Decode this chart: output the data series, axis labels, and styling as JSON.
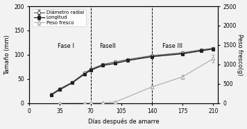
{
  "x_days": [
    25,
    35,
    49,
    63,
    70,
    84,
    98,
    112,
    140,
    175,
    196,
    210
  ],
  "diametro_radial": [
    18,
    30,
    43,
    62,
    70,
    80,
    85,
    90,
    98,
    104,
    110,
    113
  ],
  "longitud": [
    17,
    28,
    42,
    60,
    68,
    78,
    82,
    88,
    96,
    102,
    108,
    112
  ],
  "diametro_err": [
    1.5,
    1.5,
    2,
    2,
    2,
    2,
    2,
    2,
    2.5,
    2.5,
    3,
    3
  ],
  "longitud_err": [
    1.5,
    1.5,
    2,
    2,
    2,
    2,
    2,
    2,
    2.5,
    2.5,
    3,
    3
  ],
  "peso_fresco_x": [
    35,
    63,
    70,
    84,
    98,
    140,
    175,
    210
  ],
  "peso_fresco_y": [
    0,
    2,
    8,
    12,
    30,
    420,
    680,
    1150
  ],
  "peso_err": [
    0,
    0,
    0,
    0,
    5,
    40,
    55,
    90
  ],
  "fase1_x": 70,
  "fase2_x": 140,
  "ylabel_left": "Tamaño (mm)",
  "ylabel_right": "Peso fresco(g)",
  "xlabel": "Días después de amarre",
  "ylim_left": [
    0,
    200
  ],
  "ylim_right": [
    0,
    2500
  ],
  "xlim": [
    0,
    215
  ],
  "xticks": [
    0,
    35,
    70,
    105,
    140,
    175,
    210
  ],
  "yticks_left": [
    0,
    50,
    100,
    150,
    200
  ],
  "yticks_right": [
    0,
    500,
    1000,
    1500,
    2000,
    2500
  ],
  "legend_diametro": "Diámetro radial",
  "legend_longitud": "Longitud",
  "legend_peso": "Peso fresco",
  "label_fase1": "Fase I",
  "label_fase2": "FaseII",
  "label_fase3": "Fase III",
  "color_diametro": "#666666",
  "color_longitud": "#222222",
  "color_peso": "#aaaaaa",
  "bg_color": "#f2f2f2"
}
